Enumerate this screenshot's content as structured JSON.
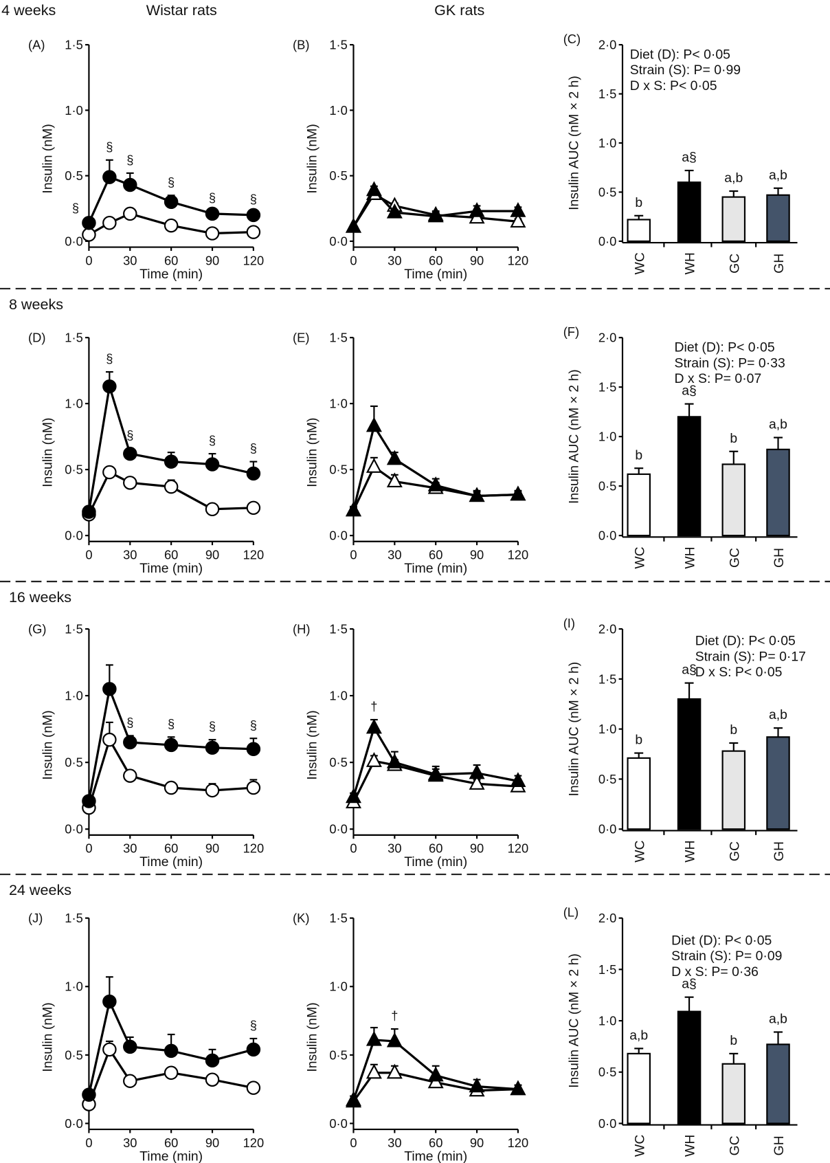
{
  "headers": {
    "wistar": "Wistar rats",
    "gk": "GK rats"
  },
  "rows": [
    "4 weeks",
    "8 weeks",
    "16 weeks",
    "24 weeks"
  ],
  "axes": {
    "line_ylabel": "Insulin (nM)",
    "bar_ylabel": "Insulin AUC (nM × 2 h)",
    "xlabel": "Time (min)",
    "x_ticks": [
      0,
      30,
      60,
      90,
      120
    ],
    "x_tick_labels": [
      "0",
      "30",
      "60",
      "90",
      "120"
    ],
    "line_y_ticks": [
      0,
      0.5,
      1.0,
      1.5
    ],
    "line_y_tick_labels": [
      "0·0",
      "0·5",
      "1·0",
      "1·5"
    ],
    "bar_y_ticks": [
      0,
      0.5,
      1.0,
      1.5,
      2.0
    ],
    "bar_y_tick_labels": [
      "0·0",
      "0·5",
      "1·0",
      "1·5",
      "2·0"
    ],
    "line_ylim": [
      0,
      1.5
    ],
    "bar_ylim": [
      0,
      2.0
    ],
    "bar_categories": [
      "WC",
      "WH",
      "GC",
      "GH"
    ]
  },
  "colors": {
    "WC": "#ffffff",
    "WH": "#000000",
    "GC": "#e6e6e6",
    "GH": "#44546a"
  },
  "chart_data": [
    {
      "panel": "(A)",
      "type": "line",
      "x": [
        0,
        15,
        30,
        60,
        90,
        120
      ],
      "series": [
        {
          "marker": "filled-circle",
          "values": [
            0.14,
            0.49,
            0.43,
            0.3,
            0.21,
            0.2
          ],
          "err": [
            0,
            0.13,
            0.09,
            0.05,
            0.02,
            0.02
          ]
        },
        {
          "marker": "open-circle",
          "values": [
            0.05,
            0.14,
            0.21,
            0.12,
            0.06,
            0.07
          ],
          "err": [
            0,
            0.02,
            0.02,
            0.02,
            0.01,
            0.01
          ]
        }
      ],
      "annotations": [
        {
          "x": 0,
          "text": "§"
        },
        {
          "x": 15,
          "text": "§"
        },
        {
          "x": 30,
          "text": "§"
        },
        {
          "x": 60,
          "text": "§"
        },
        {
          "x": 90,
          "text": "§"
        },
        {
          "x": 120,
          "text": "§"
        }
      ]
    },
    {
      "panel": "(B)",
      "type": "line",
      "x": [
        0,
        15,
        30,
        60,
        90,
        120
      ],
      "series": [
        {
          "marker": "filled-triangle",
          "values": [
            0.11,
            0.39,
            0.22,
            0.19,
            0.23,
            0.23
          ],
          "err": [
            0,
            0.03,
            0.02,
            0.04,
            0.04,
            0.03
          ]
        },
        {
          "marker": "open-triangle",
          "values": [
            0.11,
            0.36,
            0.27,
            0.2,
            0.18,
            0.15
          ],
          "err": [
            0,
            0.02,
            0.02,
            0.02,
            0.02,
            0.02
          ]
        }
      ],
      "annotations": []
    },
    {
      "panel": "(C)",
      "type": "bar",
      "values": [
        0.22,
        0.6,
        0.45,
        0.47
      ],
      "err": [
        0.04,
        0.12,
        0.06,
        0.07
      ],
      "labels": [
        "b",
        "a§",
        "a,b",
        "a,b"
      ],
      "stats": [
        "Diet (D): P< 0·05",
        "Strain (S): P= 0·99",
        "D x S: P< 0·05"
      ]
    },
    {
      "panel": "(D)",
      "type": "line",
      "x": [
        0,
        15,
        30,
        60,
        90,
        120
      ],
      "series": [
        {
          "marker": "filled-circle",
          "values": [
            0.18,
            1.13,
            0.62,
            0.56,
            0.54,
            0.47
          ],
          "err": [
            0,
            0.11,
            0.04,
            0.07,
            0.08,
            0.09
          ]
        },
        {
          "marker": "open-circle",
          "values": [
            0.16,
            0.48,
            0.4,
            0.37,
            0.2,
            0.21
          ],
          "err": [
            0,
            0.04,
            0.04,
            0.05,
            0.02,
            0.02
          ]
        }
      ],
      "annotations": [
        {
          "x": 15,
          "text": "§"
        },
        {
          "x": 30,
          "text": "§"
        },
        {
          "x": 90,
          "text": "§"
        },
        {
          "x": 120,
          "text": "§"
        }
      ]
    },
    {
      "panel": "(E)",
      "type": "line",
      "x": [
        0,
        15,
        30,
        60,
        90,
        120
      ],
      "series": [
        {
          "marker": "filled-triangle",
          "values": [
            0.19,
            0.83,
            0.58,
            0.38,
            0.3,
            0.31
          ],
          "err": [
            0.03,
            0.15,
            0.05,
            0.05,
            0.04,
            0.03
          ]
        },
        {
          "marker": "open-triangle",
          "values": [
            0.19,
            0.52,
            0.41,
            0.36,
            0.3,
            0.31
          ],
          "err": [
            0.02,
            0.07,
            0.05,
            0.04,
            0.03,
            0.02
          ]
        }
      ],
      "annotations": []
    },
    {
      "panel": "(F)",
      "type": "bar",
      "values": [
        0.62,
        1.2,
        0.72,
        0.87
      ],
      "err": [
        0.06,
        0.13,
        0.13,
        0.12
      ],
      "labels": [
        "b",
        "a§",
        "b",
        "a,b"
      ],
      "stats": [
        "Diet (D): P< 0·05",
        "Strain (S): P= 0·33",
        "D x S: P= 0·07"
      ]
    },
    {
      "panel": "(G)",
      "type": "line",
      "x": [
        0,
        15,
        30,
        60,
        90,
        120
      ],
      "series": [
        {
          "marker": "filled-circle",
          "values": [
            0.21,
            1.05,
            0.65,
            0.63,
            0.61,
            0.6
          ],
          "err": [
            0,
            0.18,
            0.05,
            0.06,
            0.06,
            0.08
          ]
        },
        {
          "marker": "open-circle",
          "values": [
            0.16,
            0.67,
            0.4,
            0.31,
            0.29,
            0.31
          ],
          "err": [
            0,
            0.13,
            0.04,
            0.02,
            0.05,
            0.06
          ]
        }
      ],
      "annotations": [
        {
          "x": 30,
          "text": "§"
        },
        {
          "x": 60,
          "text": "§"
        },
        {
          "x": 90,
          "text": "§"
        },
        {
          "x": 120,
          "text": "§"
        }
      ]
    },
    {
      "panel": "(H)",
      "type": "line",
      "x": [
        0,
        15,
        30,
        60,
        90,
        120
      ],
      "series": [
        {
          "marker": "filled-triangle",
          "values": [
            0.24,
            0.76,
            0.5,
            0.41,
            0.42,
            0.36
          ],
          "err": [
            0.03,
            0.06,
            0.08,
            0.06,
            0.06,
            0.04
          ]
        },
        {
          "marker": "open-triangle",
          "values": [
            0.2,
            0.51,
            0.48,
            0.4,
            0.34,
            0.32
          ],
          "err": [
            0.02,
            0.04,
            0.04,
            0.05,
            0.03,
            0.03
          ]
        }
      ],
      "annotations": [
        {
          "x": 15,
          "text": "†"
        }
      ]
    },
    {
      "panel": "(I)",
      "type": "bar",
      "values": [
        0.71,
        1.3,
        0.78,
        0.92
      ],
      "err": [
        0.05,
        0.16,
        0.08,
        0.09
      ],
      "labels": [
        "b",
        "a§",
        "b",
        "a,b"
      ],
      "stats": [
        "Diet (D): P< 0·05",
        "Strain (S): P= 0·17",
        "D x S: P< 0·05"
      ]
    },
    {
      "panel": "(J)",
      "type": "line",
      "x": [
        0,
        15,
        30,
        60,
        90,
        120
      ],
      "series": [
        {
          "marker": "filled-circle",
          "values": [
            0.21,
            0.89,
            0.56,
            0.53,
            0.46,
            0.54
          ],
          "err": [
            0,
            0.18,
            0.07,
            0.12,
            0.08,
            0.08
          ]
        },
        {
          "marker": "open-circle",
          "values": [
            0.14,
            0.54,
            0.31,
            0.37,
            0.32,
            0.26
          ],
          "err": [
            0,
            0.06,
            0.02,
            0.03,
            0.03,
            0.02
          ]
        }
      ],
      "annotations": [
        {
          "x": 120,
          "text": "§"
        }
      ]
    },
    {
      "panel": "(K)",
      "type": "line",
      "x": [
        0,
        15,
        30,
        60,
        90,
        120
      ],
      "series": [
        {
          "marker": "filled-triangle",
          "values": [
            0.17,
            0.61,
            0.6,
            0.35,
            0.27,
            0.25
          ],
          "err": [
            0.03,
            0.09,
            0.09,
            0.07,
            0.05,
            0.03
          ]
        },
        {
          "marker": "open-triangle",
          "values": [
            0.16,
            0.37,
            0.37,
            0.3,
            0.24,
            0.25
          ],
          "err": [
            0.02,
            0.06,
            0.05,
            0.04,
            0.03,
            0.03
          ]
        }
      ],
      "annotations": [
        {
          "x": 30,
          "text": "†"
        }
      ]
    },
    {
      "panel": "(L)",
      "type": "bar",
      "values": [
        0.68,
        1.09,
        0.58,
        0.77
      ],
      "err": [
        0.05,
        0.14,
        0.1,
        0.12
      ],
      "labels": [
        "a,b",
        "a§",
        "b",
        "a,b"
      ],
      "stats": [
        "Diet (D): P< 0·05",
        "Strain (S): P= 0·09",
        "D x S: P= 0·36"
      ]
    }
  ]
}
